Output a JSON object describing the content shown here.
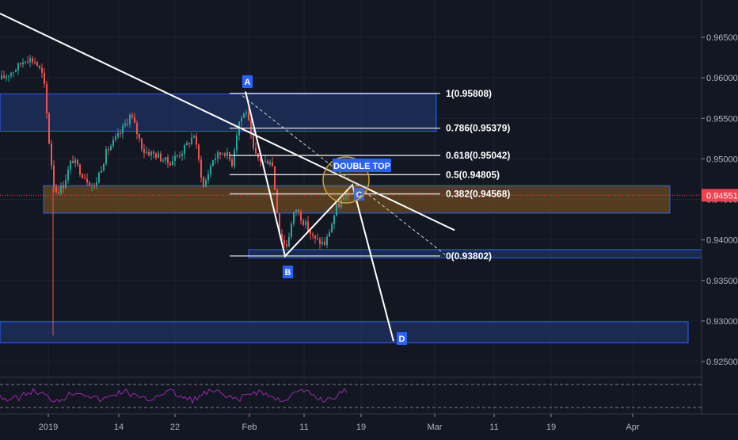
{
  "chart_data": {
    "type": "candlestick",
    "x_ticks": [
      "2019",
      "14",
      "22",
      "Feb",
      "11",
      "19",
      "Mar",
      "11",
      "19",
      "Apr"
    ],
    "y_ticks": [
      "0.96500",
      "0.96000",
      "0.95500",
      "0.95000",
      "0.94500",
      "0.94000",
      "0.93500",
      "0.93000",
      "0.92500"
    ],
    "ylim": [
      0.9208,
      0.9693
    ],
    "current_price": {
      "value": 0.94551,
      "label": "0.94551",
      "color": "#f0424d"
    },
    "fib_levels": [
      {
        "label": "1(0.95808)",
        "value": 0.95808
      },
      {
        "label": "0.786(0.95379)",
        "value": 0.95379
      },
      {
        "label": "0.618(0.95042)",
        "value": 0.95042
      },
      {
        "label": "0.5(0.94805)",
        "value": 0.94805
      },
      {
        "label": "0.382(0.94568)",
        "value": 0.94568
      },
      {
        "label": "0(0.93802)",
        "value": 0.93802
      }
    ],
    "points": [
      {
        "label": "A",
        "price": 0.9583
      },
      {
        "label": "B",
        "price": 0.938
      },
      {
        "label": "C",
        "price": 0.9468
      },
      {
        "label": "D",
        "price": 0.9275
      }
    ],
    "annotation": "DOUBLE TOP",
    "zones": [
      {
        "name": "resistance-zone",
        "from": 0.9534,
        "to": 0.958
      },
      {
        "name": "mid-zone",
        "from": 0.9433,
        "to": 0.9467
      },
      {
        "name": "fib-base-zone",
        "from": 0.9378,
        "to": 0.9388
      },
      {
        "name": "target-zone",
        "from": 0.9273,
        "to": 0.9299
      }
    ],
    "colors": {
      "background": "#131722",
      "up": "#26a69a",
      "down": "#ef5350",
      "zone_border": "#2962ff",
      "zone_fill": "#1e3160",
      "mid_zone_fill": "#6a4a1f",
      "label_box": "#2962ff",
      "oscillator": "#9c27b0"
    }
  }
}
